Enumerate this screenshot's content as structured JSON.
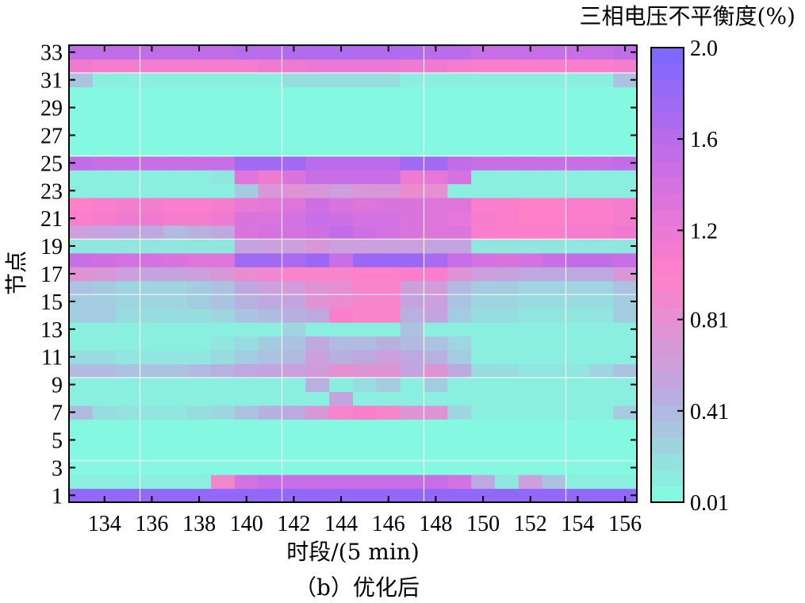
{
  "chart_data": {
    "type": "heatmap",
    "title": "",
    "xlabel": "时段/(5 min)",
    "ylabel": "节点",
    "caption": "（b）优化后",
    "colorbar_title": "三相电压不平衡度(%)",
    "x": [
      133,
      134,
      135,
      136,
      137,
      138,
      139,
      140,
      141,
      142,
      143,
      144,
      145,
      146,
      147,
      148,
      149,
      150,
      151,
      152,
      153,
      154,
      155,
      156
    ],
    "y": [
      1,
      2,
      3,
      4,
      5,
      6,
      7,
      8,
      9,
      10,
      11,
      12,
      13,
      14,
      15,
      16,
      17,
      18,
      19,
      20,
      21,
      22,
      23,
      24,
      25,
      26,
      27,
      28,
      29,
      30,
      31,
      32,
      33
    ],
    "xlim": [
      133,
      156
    ],
    "ylim": [
      1,
      33
    ],
    "x_ticks": [
      134,
      136,
      138,
      140,
      142,
      144,
      146,
      148,
      150,
      152,
      154,
      156
    ],
    "y_ticks": [
      1,
      3,
      5,
      7,
      9,
      11,
      13,
      15,
      17,
      19,
      21,
      23,
      25,
      27,
      29,
      31,
      33
    ],
    "x_tick_labels": [
      "134",
      "136",
      "138",
      "140",
      "142",
      "144",
      "146",
      "148",
      "150",
      "152",
      "154",
      "156"
    ],
    "y_tick_labels": [
      "1",
      "3",
      "5",
      "7",
      "9",
      "11",
      "13",
      "15",
      "17",
      "19",
      "21",
      "23",
      "25",
      "27",
      "29",
      "31",
      "33"
    ],
    "grid": true,
    "colorscale": [
      "#7fffe0",
      "#bfa7e0",
      "#ff80c8",
      "#c86ee6",
      "#7a66ff"
    ],
    "colorbar": {
      "min": 0.01,
      "max": 2.0,
      "ticks": [
        0.01,
        0.41,
        0.81,
        1.2,
        1.6,
        2.0
      ],
      "tick_labels": [
        "0.01",
        "0.41",
        "0.81",
        "1.2",
        "1.6",
        "2.0"
      ]
    },
    "rows": [
      [
        1.85,
        1.85,
        1.85,
        1.85,
        1.85,
        1.85,
        1.85,
        1.85,
        1.85,
        1.85,
        1.85,
        1.85,
        1.85,
        1.85,
        1.85,
        1.85,
        1.85,
        1.85,
        1.85,
        1.85,
        1.85,
        1.85,
        1.85,
        1.85
      ],
      [
        0.1,
        0.1,
        0.1,
        0.1,
        0.1,
        0.1,
        0.9,
        1.4,
        1.5,
        1.5,
        1.5,
        1.5,
        1.5,
        1.5,
        1.5,
        1.5,
        1.4,
        0.5,
        0.15,
        0.6,
        0.35,
        0.1,
        0.1,
        0.1
      ],
      [
        0.05,
        0.05,
        0.05,
        0.05,
        0.05,
        0.05,
        0.05,
        0.05,
        0.05,
        0.05,
        0.05,
        0.05,
        0.05,
        0.05,
        0.05,
        0.05,
        0.05,
        0.05,
        0.05,
        0.05,
        0.05,
        0.05,
        0.05,
        0.05
      ],
      [
        0.05,
        0.05,
        0.05,
        0.05,
        0.05,
        0.05,
        0.05,
        0.05,
        0.05,
        0.05,
        0.05,
        0.05,
        0.05,
        0.05,
        0.05,
        0.05,
        0.05,
        0.05,
        0.05,
        0.05,
        0.05,
        0.05,
        0.05,
        0.05
      ],
      [
        0.05,
        0.05,
        0.05,
        0.05,
        0.05,
        0.05,
        0.05,
        0.05,
        0.05,
        0.05,
        0.05,
        0.05,
        0.05,
        0.05,
        0.05,
        0.05,
        0.05,
        0.05,
        0.05,
        0.05,
        0.05,
        0.05,
        0.05,
        0.05
      ],
      [
        0.05,
        0.05,
        0.05,
        0.05,
        0.05,
        0.05,
        0.05,
        0.05,
        0.05,
        0.05,
        0.05,
        0.05,
        0.05,
        0.05,
        0.05,
        0.05,
        0.05,
        0.05,
        0.05,
        0.05,
        0.05,
        0.05,
        0.05,
        0.05
      ],
      [
        0.4,
        0.2,
        0.18,
        0.15,
        0.15,
        0.2,
        0.25,
        0.35,
        0.45,
        0.5,
        0.7,
        0.95,
        1.05,
        0.95,
        0.75,
        0.75,
        0.25,
        0.1,
        0.1,
        0.1,
        0.1,
        0.1,
        0.1,
        0.3
      ],
      [
        0.1,
        0.1,
        0.1,
        0.1,
        0.1,
        0.1,
        0.1,
        0.1,
        0.1,
        0.1,
        0.1,
        0.55,
        0.1,
        0.1,
        0.1,
        0.1,
        0.1,
        0.1,
        0.1,
        0.1,
        0.1,
        0.1,
        0.1,
        0.1
      ],
      [
        0.1,
        0.1,
        0.1,
        0.1,
        0.1,
        0.1,
        0.1,
        0.1,
        0.1,
        0.1,
        0.45,
        0.1,
        0.2,
        0.3,
        0.1,
        0.3,
        0.1,
        0.1,
        0.1,
        0.1,
        0.1,
        0.1,
        0.1,
        0.1
      ],
      [
        0.4,
        0.4,
        0.35,
        0.35,
        0.35,
        0.4,
        0.45,
        0.5,
        0.55,
        0.6,
        0.65,
        0.8,
        0.75,
        0.75,
        0.55,
        0.75,
        0.5,
        0.2,
        0.2,
        0.15,
        0.15,
        0.15,
        0.25,
        0.35
      ],
      [
        0.2,
        0.2,
        0.15,
        0.15,
        0.15,
        0.15,
        0.2,
        0.3,
        0.35,
        0.4,
        0.6,
        0.45,
        0.5,
        0.6,
        0.5,
        0.45,
        0.3,
        0.1,
        0.1,
        0.1,
        0.1,
        0.1,
        0.1,
        0.1
      ],
      [
        0.1,
        0.1,
        0.1,
        0.1,
        0.1,
        0.1,
        0.15,
        0.2,
        0.3,
        0.35,
        0.5,
        0.4,
        0.4,
        0.45,
        0.4,
        0.35,
        0.25,
        0.1,
        0.1,
        0.1,
        0.1,
        0.1,
        0.1,
        0.1
      ],
      [
        0.1,
        0.1,
        0.1,
        0.1,
        0.1,
        0.1,
        0.1,
        0.1,
        0.1,
        0.25,
        0.1,
        0.1,
        0.1,
        0.1,
        0.35,
        0.1,
        0.1,
        0.1,
        0.1,
        0.1,
        0.1,
        0.1,
        0.1,
        0.1
      ],
      [
        0.3,
        0.3,
        0.2,
        0.2,
        0.2,
        0.2,
        0.25,
        0.35,
        0.4,
        0.45,
        0.5,
        1.05,
        0.95,
        0.95,
        0.45,
        0.55,
        0.3,
        0.2,
        0.2,
        0.15,
        0.15,
        0.15,
        0.15,
        0.3
      ],
      [
        0.3,
        0.3,
        0.25,
        0.25,
        0.25,
        0.3,
        0.35,
        0.45,
        0.5,
        0.55,
        0.75,
        0.85,
        0.95,
        0.95,
        0.55,
        0.6,
        0.35,
        0.25,
        0.25,
        0.2,
        0.2,
        0.2,
        0.2,
        0.3
      ],
      [
        0.35,
        0.3,
        0.25,
        0.25,
        0.25,
        0.3,
        0.35,
        0.5,
        0.6,
        0.65,
        0.75,
        0.8,
        0.95,
        0.95,
        0.6,
        0.65,
        0.4,
        0.3,
        0.3,
        0.25,
        0.25,
        0.25,
        0.25,
        0.35
      ],
      [
        0.75,
        0.7,
        0.6,
        0.55,
        0.55,
        0.6,
        0.7,
        0.85,
        0.9,
        0.95,
        0.95,
        0.95,
        1.0,
        1.0,
        1.05,
        1.05,
        0.75,
        0.6,
        0.55,
        0.5,
        0.5,
        0.5,
        0.5,
        0.7
      ],
      [
        1.5,
        1.45,
        1.4,
        1.4,
        1.35,
        1.3,
        1.3,
        1.75,
        1.75,
        1.7,
        1.8,
        1.5,
        1.8,
        1.8,
        1.8,
        1.7,
        1.5,
        1.4,
        1.35,
        1.4,
        1.5,
        1.55,
        1.55,
        1.5
      ],
      [
        0.15,
        0.15,
        0.15,
        0.15,
        0.15,
        0.15,
        0.15,
        0.55,
        0.6,
        0.6,
        0.7,
        0.6,
        0.6,
        0.6,
        0.6,
        0.55,
        0.55,
        0.15,
        0.15,
        0.15,
        0.15,
        0.15,
        0.15,
        0.15
      ],
      [
        0.6,
        0.55,
        0.5,
        0.5,
        0.4,
        0.45,
        0.5,
        1.35,
        1.4,
        1.4,
        1.45,
        1.55,
        1.45,
        1.4,
        1.35,
        1.3,
        1.3,
        1.05,
        1.05,
        1.05,
        1.05,
        1.1,
        1.1,
        1.15
      ],
      [
        1.05,
        1.1,
        1.15,
        1.15,
        1.1,
        1.1,
        1.15,
        1.35,
        1.35,
        1.4,
        1.5,
        1.45,
        1.4,
        1.4,
        1.35,
        1.3,
        1.25,
        1.1,
        1.05,
        1.0,
        1.0,
        1.05,
        1.05,
        1.1
      ],
      [
        1.0,
        1.05,
        1.1,
        1.1,
        1.05,
        1.05,
        1.1,
        1.2,
        1.25,
        1.3,
        1.45,
        1.35,
        1.3,
        1.35,
        1.35,
        1.3,
        1.3,
        1.05,
        1.05,
        1.0,
        1.0,
        1.05,
        1.05,
        1.1
      ],
      [
        0.1,
        0.1,
        0.1,
        0.1,
        0.1,
        0.1,
        0.1,
        0.3,
        0.7,
        0.75,
        0.7,
        0.6,
        0.7,
        0.7,
        0.85,
        0.8,
        0.1,
        0.1,
        0.1,
        0.1,
        0.1,
        0.1,
        0.1,
        0.1
      ],
      [
        0.1,
        0.1,
        0.1,
        0.1,
        0.1,
        0.1,
        0.15,
        1.3,
        1.15,
        1.35,
        1.5,
        1.5,
        1.5,
        1.5,
        1.15,
        1.25,
        1.4,
        0.1,
        0.1,
        0.1,
        0.1,
        0.1,
        0.1,
        0.1
      ],
      [
        1.55,
        1.5,
        1.5,
        1.5,
        1.5,
        1.5,
        1.5,
        1.75,
        1.75,
        1.75,
        1.6,
        1.6,
        1.6,
        1.6,
        1.75,
        1.75,
        1.55,
        1.5,
        1.5,
        1.5,
        1.5,
        1.5,
        1.5,
        1.55
      ],
      [
        0.05,
        0.05,
        0.05,
        0.05,
        0.05,
        0.05,
        0.05,
        0.05,
        0.05,
        0.05,
        0.05,
        0.05,
        0.05,
        0.05,
        0.05,
        0.05,
        0.05,
        0.05,
        0.05,
        0.05,
        0.05,
        0.05,
        0.05,
        0.05
      ],
      [
        0.05,
        0.05,
        0.05,
        0.05,
        0.05,
        0.05,
        0.05,
        0.05,
        0.05,
        0.05,
        0.05,
        0.05,
        0.05,
        0.05,
        0.05,
        0.05,
        0.05,
        0.05,
        0.05,
        0.05,
        0.05,
        0.05,
        0.05,
        0.05
      ],
      [
        0.05,
        0.05,
        0.05,
        0.05,
        0.05,
        0.05,
        0.05,
        0.05,
        0.05,
        0.05,
        0.05,
        0.05,
        0.05,
        0.05,
        0.05,
        0.05,
        0.05,
        0.05,
        0.05,
        0.05,
        0.05,
        0.05,
        0.05,
        0.05
      ],
      [
        0.05,
        0.05,
        0.05,
        0.05,
        0.05,
        0.05,
        0.05,
        0.05,
        0.05,
        0.05,
        0.05,
        0.05,
        0.05,
        0.05,
        0.05,
        0.05,
        0.05,
        0.05,
        0.05,
        0.05,
        0.05,
        0.05,
        0.05,
        0.05
      ],
      [
        0.05,
        0.05,
        0.05,
        0.05,
        0.05,
        0.05,
        0.05,
        0.05,
        0.05,
        0.05,
        0.05,
        0.05,
        0.05,
        0.05,
        0.05,
        0.05,
        0.05,
        0.05,
        0.05,
        0.05,
        0.05,
        0.05,
        0.05,
        0.05
      ],
      [
        0.35,
        0.1,
        0.1,
        0.1,
        0.1,
        0.1,
        0.1,
        0.1,
        0.1,
        0.2,
        0.2,
        0.2,
        0.2,
        0.2,
        0.1,
        0.1,
        0.1,
        0.1,
        0.1,
        0.1,
        0.1,
        0.1,
        0.1,
        0.35
      ],
      [
        1.15,
        1.1,
        1.1,
        1.1,
        1.1,
        1.1,
        1.1,
        1.1,
        1.15,
        1.15,
        1.2,
        1.2,
        1.2,
        1.2,
        1.15,
        1.15,
        1.1,
        1.05,
        1.05,
        1.05,
        1.05,
        1.05,
        1.05,
        1.1
      ],
      [
        1.55,
        1.55,
        1.55,
        1.55,
        1.55,
        1.55,
        1.55,
        1.6,
        1.6,
        1.65,
        1.65,
        1.65,
        1.65,
        1.65,
        1.65,
        1.6,
        1.6,
        1.5,
        1.5,
        1.5,
        1.5,
        1.5,
        1.5,
        1.55
      ]
    ]
  }
}
